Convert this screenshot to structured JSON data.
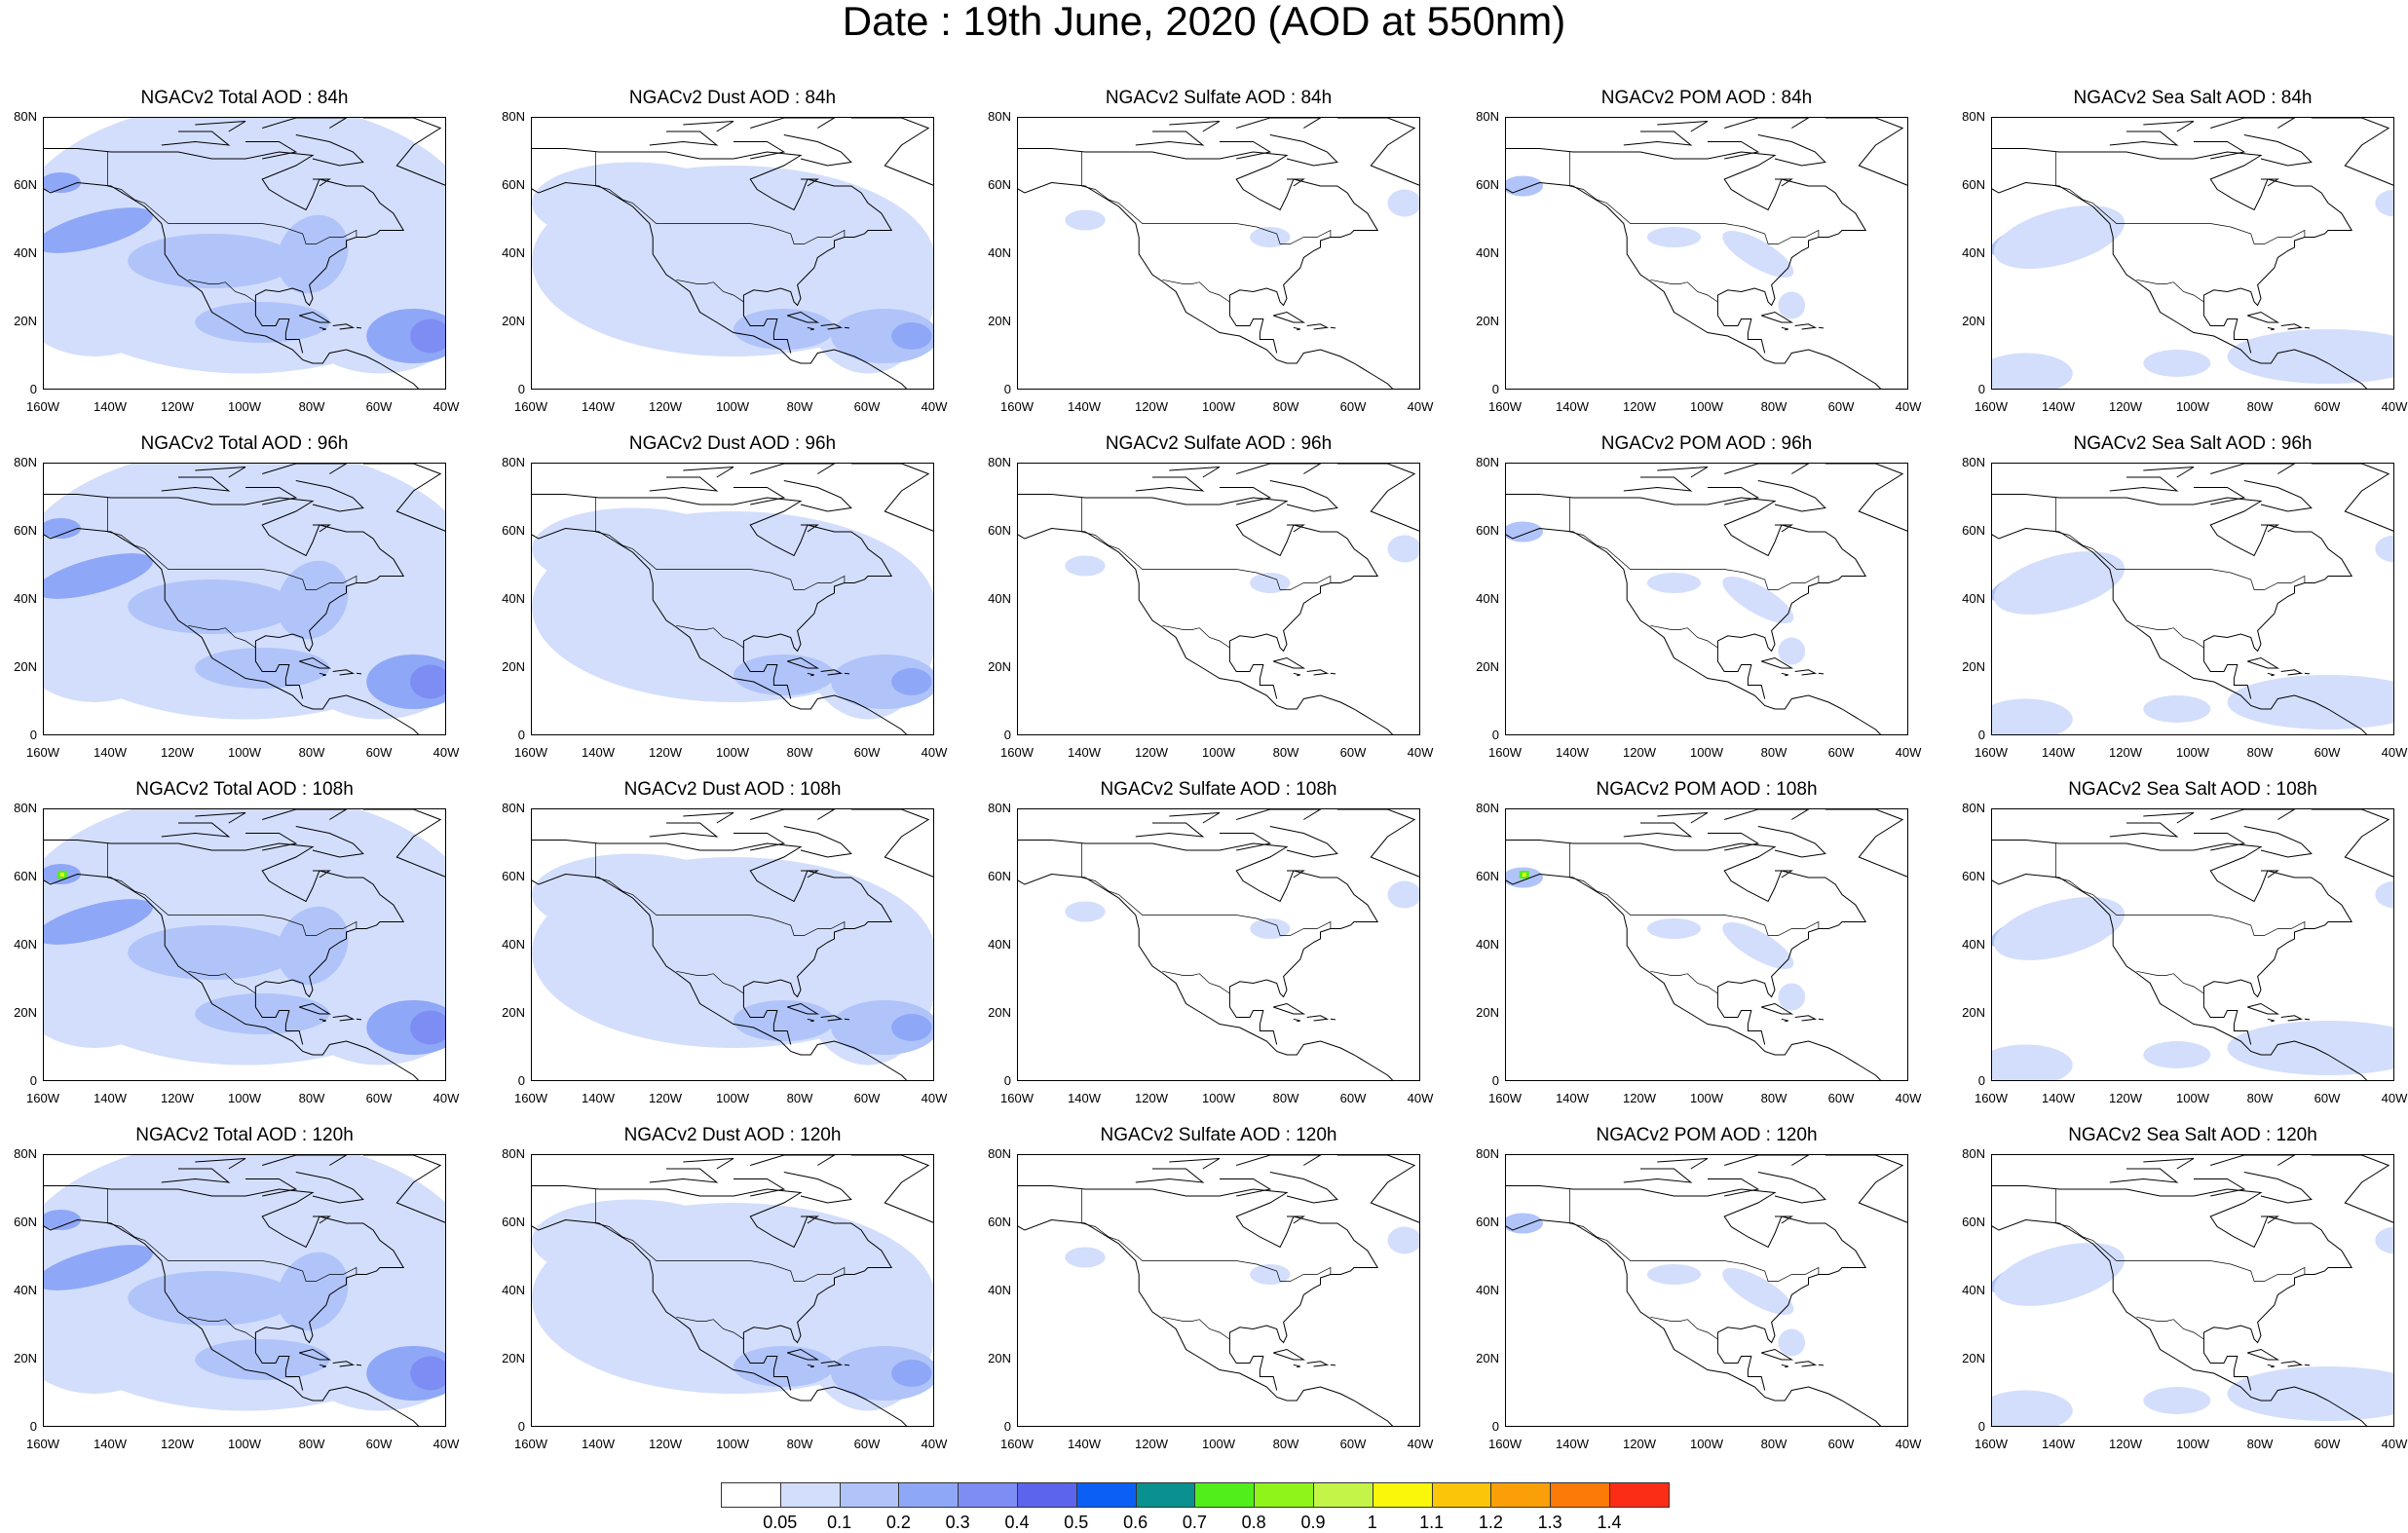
{
  "title": "Date : 19th June, 2020 (AOD at 550nm)",
  "lat_ticks": [
    "80N",
    "60N",
    "40N",
    "20N",
    "0"
  ],
  "lon_ticks": [
    "160W",
    "140W",
    "120W",
    "100W",
    "80W",
    "60W",
    "40W"
  ],
  "rows": [
    {
      "panels": [
        {
          "title": "NGACv2 Total AOD : 84h",
          "type": "total"
        },
        {
          "title": "NGACv2 Dust AOD : 84h",
          "type": "dust"
        },
        {
          "title": "NGACv2 Sulfate AOD : 84h",
          "type": "sulfate"
        },
        {
          "title": "NGACv2 POM AOD : 84h",
          "type": "pom"
        },
        {
          "title": "NGACv2 Sea Salt AOD : 84h",
          "type": "seasalt"
        }
      ]
    },
    {
      "panels": [
        {
          "title": "NGACv2 Total AOD : 96h",
          "type": "total"
        },
        {
          "title": "NGACv2 Dust AOD : 96h",
          "type": "dust"
        },
        {
          "title": "NGACv2 Sulfate AOD : 96h",
          "type": "sulfate"
        },
        {
          "title": "NGACv2 POM AOD : 96h",
          "type": "pom"
        },
        {
          "title": "NGACv2 Sea Salt AOD : 96h",
          "type": "seasalt"
        }
      ]
    },
    {
      "panels": [
        {
          "title": "NGACv2 Total AOD : 108h",
          "type": "total"
        },
        {
          "title": "NGACv2 Dust AOD : 108h",
          "type": "dust"
        },
        {
          "title": "NGACv2 Sulfate AOD : 108h",
          "type": "sulfate"
        },
        {
          "title": "NGACv2 POM AOD : 108h",
          "type": "pom"
        },
        {
          "title": "NGACv2 Sea Salt AOD : 108h",
          "type": "seasalt"
        }
      ]
    },
    {
      "panels": [
        {
          "title": "NGACv2 Total AOD : 120h",
          "type": "total"
        },
        {
          "title": "NGACv2 Dust AOD : 120h",
          "type": "dust"
        },
        {
          "title": "NGACv2 Sulfate AOD : 120h",
          "type": "sulfate"
        },
        {
          "title": "NGACv2 POM AOD : 120h",
          "type": "pom"
        },
        {
          "title": "NGACv2 Sea Salt  AOD : 120h",
          "type": "seasalt"
        }
      ]
    }
  ],
  "colorbar": {
    "colors": [
      "#ffffff",
      "#d3defc",
      "#b0c4fa",
      "#8fa7f7",
      "#7d8df3",
      "#5c63ec",
      "#0b5ff5",
      "#08918e",
      "#52ee1c",
      "#8ff41a",
      "#c4f448",
      "#faf70a",
      "#fbc50a",
      "#fb9f08",
      "#fb7a08",
      "#fb2d16"
    ],
    "labels": [
      "0.05",
      "0.1",
      "0.2",
      "0.3",
      "0.4",
      "0.5",
      "0.6",
      "0.7",
      "0.8",
      "0.9",
      "1",
      "1.1",
      "1.2",
      "1.3",
      "1.4"
    ]
  }
}
